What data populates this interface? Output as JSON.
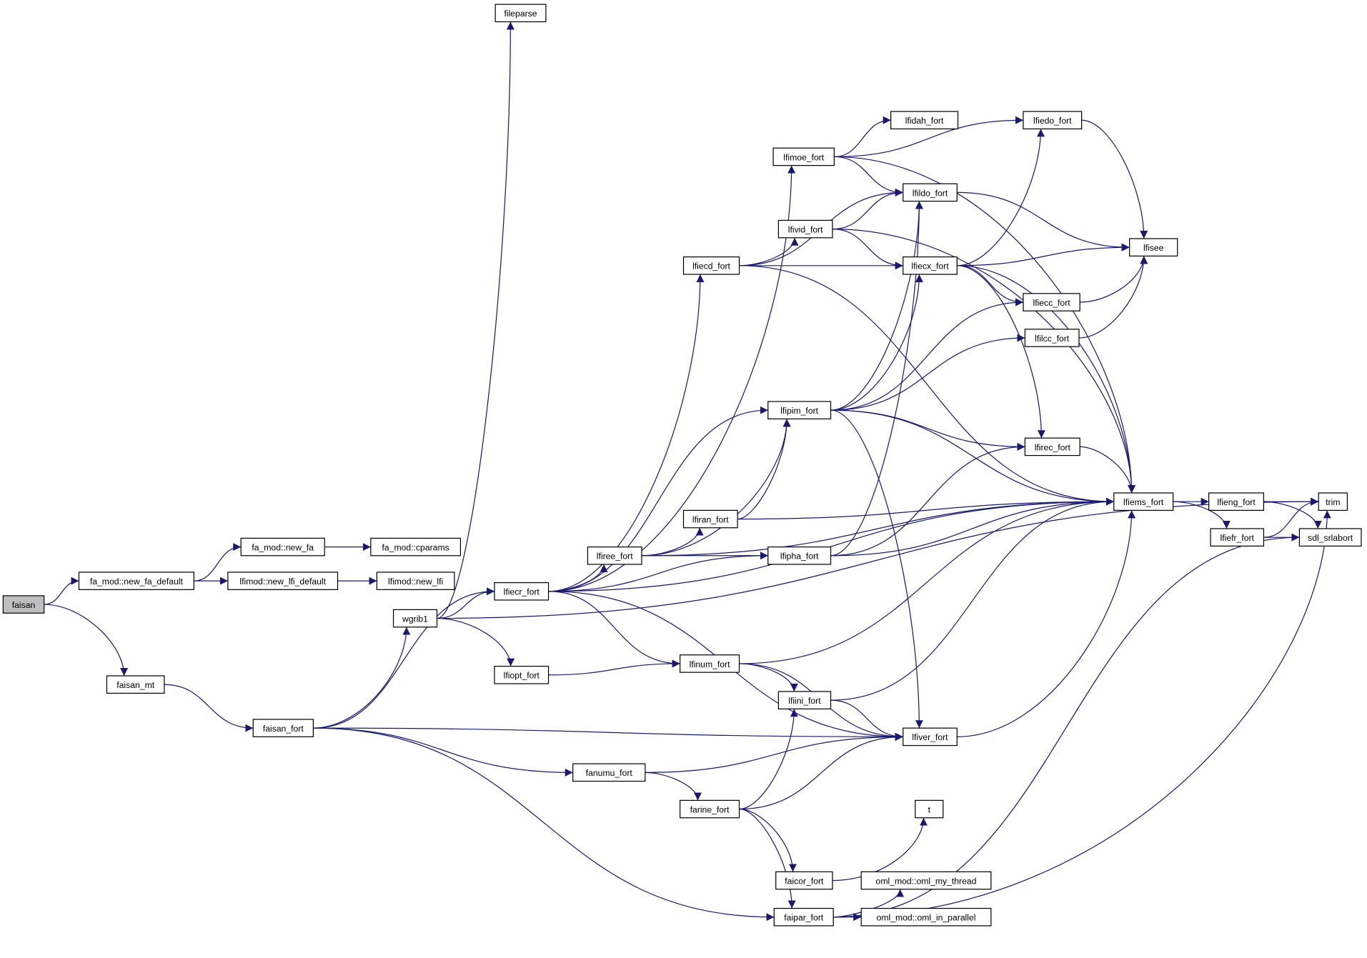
{
  "graph": {
    "root": "faisan",
    "colors": {
      "edge": "#191970",
      "root_fill": "#bfbfbf",
      "node_fill": "#ffffff",
      "node_border": "#000000"
    },
    "nodes": [
      {
        "id": "faisan",
        "label": "faisan"
      },
      {
        "id": "fa_mod::new_fa_default",
        "label": "fa_mod::new_fa_default"
      },
      {
        "id": "fa_mod::new_fa",
        "label": "fa_mod::new_fa"
      },
      {
        "id": "fa_mod::cparams",
        "label": "fa_mod::cparams"
      },
      {
        "id": "lfimod::new_lfi_default",
        "label": "lfimod::new_lfi_default"
      },
      {
        "id": "lfimod::new_lfi",
        "label": "lfimod::new_lfi"
      },
      {
        "id": "faisan_mt",
        "label": "faisan_mt"
      },
      {
        "id": "faisan_fort",
        "label": "faisan_fort"
      },
      {
        "id": "wgrib1",
        "label": "wgrib1"
      },
      {
        "id": "fileparse",
        "label": "fileparse"
      },
      {
        "id": "lfiecr_fort",
        "label": "lfiecr_fort"
      },
      {
        "id": "lfiopt_fort",
        "label": "lfiopt_fort"
      },
      {
        "id": "lfimoe_fort",
        "label": "lfimoe_fort"
      },
      {
        "id": "lfidah_fort",
        "label": "lfidah_fort"
      },
      {
        "id": "lfiedo_fort",
        "label": "lfiedo_fort"
      },
      {
        "id": "lfildo_fort",
        "label": "lfildo_fort"
      },
      {
        "id": "lfivid_fort",
        "label": "lfivid_fort"
      },
      {
        "id": "lfiecd_fort",
        "label": "lfiecd_fort"
      },
      {
        "id": "lfiecx_fort",
        "label": "lfiecx_fort"
      },
      {
        "id": "lfisee",
        "label": "lfisee"
      },
      {
        "id": "lfiecc_fort",
        "label": "lfiecc_fort"
      },
      {
        "id": "lfilcc_fort",
        "label": "lfilcc_fort"
      },
      {
        "id": "lfipim_fort",
        "label": "lfipim_fort"
      },
      {
        "id": "lfirec_fort",
        "label": "lfirec_fort"
      },
      {
        "id": "lfiems_fort",
        "label": "lfiems_fort"
      },
      {
        "id": "lfieng_fort",
        "label": "lfieng_fort"
      },
      {
        "id": "trim",
        "label": "trim"
      },
      {
        "id": "lfiefr_fort",
        "label": "lfiefr_fort"
      },
      {
        "id": "sdl_srlabort",
        "label": "sdl_srlabort"
      },
      {
        "id": "lfiran_fort",
        "label": "lfiran_fort"
      },
      {
        "id": "lfiree_fort",
        "label": "lfiree_fort"
      },
      {
        "id": "lfipha_fort",
        "label": "lfipha_fort"
      },
      {
        "id": "lfinum_fort",
        "label": "lfinum_fort"
      },
      {
        "id": "lfiini_fort",
        "label": "lfiini_fort"
      },
      {
        "id": "lfiver_fort",
        "label": "lfiver_fort"
      },
      {
        "id": "fanumu_fort",
        "label": "fanumu_fort"
      },
      {
        "id": "farine_fort",
        "label": "farine_fort"
      },
      {
        "id": "t",
        "label": "t"
      },
      {
        "id": "faicor_fort",
        "label": "faicor_fort"
      },
      {
        "id": "faipar_fort",
        "label": "faipar_fort"
      },
      {
        "id": "oml_mod::oml_my_thread",
        "label": "oml_mod::oml_my_thread"
      },
      {
        "id": "oml_mod::oml_in_parallel",
        "label": "oml_mod::oml_in_parallel"
      }
    ],
    "edges": [
      [
        "faisan",
        "fa_mod::new_fa_default"
      ],
      [
        "faisan",
        "faisan_mt"
      ],
      [
        "fa_mod::new_fa_default",
        "fa_mod::new_fa"
      ],
      [
        "fa_mod::new_fa_default",
        "lfimod::new_lfi_default"
      ],
      [
        "fa_mod::new_fa",
        "fa_mod::cparams"
      ],
      [
        "lfimod::new_lfi_default",
        "lfimod::new_lfi"
      ],
      [
        "faisan_mt",
        "faisan_fort"
      ],
      [
        "faisan_fort",
        "wgrib1"
      ],
      [
        "faisan_fort",
        "lfiecr_fort"
      ],
      [
        "faisan_fort",
        "fanumu_fort"
      ],
      [
        "faisan_fort",
        "lfiver_fort"
      ],
      [
        "faisan_fort",
        "faipar_fort"
      ],
      [
        "wgrib1",
        "fileparse"
      ],
      [
        "wgrib1",
        "trim"
      ],
      [
        "wgrib1",
        "lfiecr_fort"
      ],
      [
        "wgrib1",
        "lfiopt_fort"
      ],
      [
        "lfiecr_fort",
        "lfimoe_fort"
      ],
      [
        "lfiecr_fort",
        "lfiecd_fort"
      ],
      [
        "lfiecr_fort",
        "lfipim_fort"
      ],
      [
        "lfiecr_fort",
        "lfiree_fort"
      ],
      [
        "lfiecr_fort",
        "lfipha_fort"
      ],
      [
        "lfiecr_fort",
        "lfiems_fort"
      ],
      [
        "lfiecr_fort",
        "lfinum_fort"
      ],
      [
        "lfiecr_fort",
        "lfiver_fort"
      ],
      [
        "lfiopt_fort",
        "lfinum_fort"
      ],
      [
        "lfimoe_fort",
        "lfiedo_fort"
      ],
      [
        "lfimoe_fort",
        "lfidah_fort"
      ],
      [
        "lfimoe_fort",
        "lfildo_fort"
      ],
      [
        "lfimoe_fort",
        "lfiems_fort"
      ],
      [
        "lfiecd_fort",
        "lfildo_fort"
      ],
      [
        "lfiecd_fort",
        "lfivid_fort"
      ],
      [
        "lfiecd_fort",
        "lfiecx_fort"
      ],
      [
        "lfiecd_fort",
        "lfiems_fort"
      ],
      [
        "lfivid_fort",
        "lfildo_fort"
      ],
      [
        "lfivid_fort",
        "lfiecx_fort"
      ],
      [
        "lfivid_fort",
        "lfiems_fort"
      ],
      [
        "lfildo_fort",
        "lfisee"
      ],
      [
        "lfiecx_fort",
        "lfiedo_fort"
      ],
      [
        "lfiecx_fort",
        "lfisee"
      ],
      [
        "lfiecx_fort",
        "lfiecc_fort"
      ],
      [
        "lfiecx_fort",
        "lfirec_fort"
      ],
      [
        "lfiecx_fort",
        "lfiems_fort"
      ],
      [
        "lfiedo_fort",
        "lfisee"
      ],
      [
        "lfiecc_fort",
        "lfisee"
      ],
      [
        "lfilcc_fort",
        "lfisee"
      ],
      [
        "lfipim_fort",
        "lfildo_fort"
      ],
      [
        "lfipim_fort",
        "lfiecx_fort"
      ],
      [
        "lfipim_fort",
        "lfiecc_fort"
      ],
      [
        "lfipim_fort",
        "lfilcc_fort"
      ],
      [
        "lfipim_fort",
        "lfirec_fort"
      ],
      [
        "lfipim_fort",
        "lfiems_fort"
      ],
      [
        "lfipim_fort",
        "lfiver_fort"
      ],
      [
        "lfirec_fort",
        "lfiems_fort"
      ],
      [
        "lfiran_fort",
        "lfipim_fort"
      ],
      [
        "lfiran_fort",
        "lfiems_fort"
      ],
      [
        "lfiree_fort",
        "lfiran_fort"
      ],
      [
        "lfiree_fort",
        "lfipim_fort"
      ],
      [
        "lfiree_fort",
        "lfipha_fort"
      ],
      [
        "lfiree_fort",
        "lfiems_fort"
      ],
      [
        "lfipha_fort",
        "lfildo_fort"
      ],
      [
        "lfipha_fort",
        "lfirec_fort"
      ],
      [
        "lfipha_fort",
        "lfiems_fort"
      ],
      [
        "lfiems_fort",
        "lfieng_fort"
      ],
      [
        "lfiems_fort",
        "lfiefr_fort"
      ],
      [
        "lfieng_fort",
        "trim"
      ],
      [
        "lfieng_fort",
        "sdl_srlabort"
      ],
      [
        "lfiefr_fort",
        "trim"
      ],
      [
        "lfiefr_fort",
        "sdl_srlabort"
      ],
      [
        "lfinum_fort",
        "lfiini_fort"
      ],
      [
        "lfinum_fort",
        "lfiver_fort"
      ],
      [
        "lfinum_fort",
        "lfiems_fort"
      ],
      [
        "lfiini_fort",
        "lfiver_fort"
      ],
      [
        "lfiini_fort",
        "lfiems_fort"
      ],
      [
        "lfiver_fort",
        "lfiems_fort"
      ],
      [
        "fanumu_fort",
        "lfiver_fort"
      ],
      [
        "fanumu_fort",
        "farine_fort"
      ],
      [
        "farine_fort",
        "lfiini_fort"
      ],
      [
        "farine_fort",
        "lfiver_fort"
      ],
      [
        "farine_fort",
        "faicor_fort"
      ],
      [
        "farine_fort",
        "faipar_fort"
      ],
      [
        "faicor_fort",
        "t"
      ],
      [
        "faipar_fort",
        "oml_mod::oml_my_thread"
      ],
      [
        "faipar_fort",
        "oml_mod::oml_in_parallel"
      ],
      [
        "faipar_fort",
        "trim"
      ],
      [
        "faipar_fort",
        "sdl_srlabort"
      ]
    ]
  }
}
